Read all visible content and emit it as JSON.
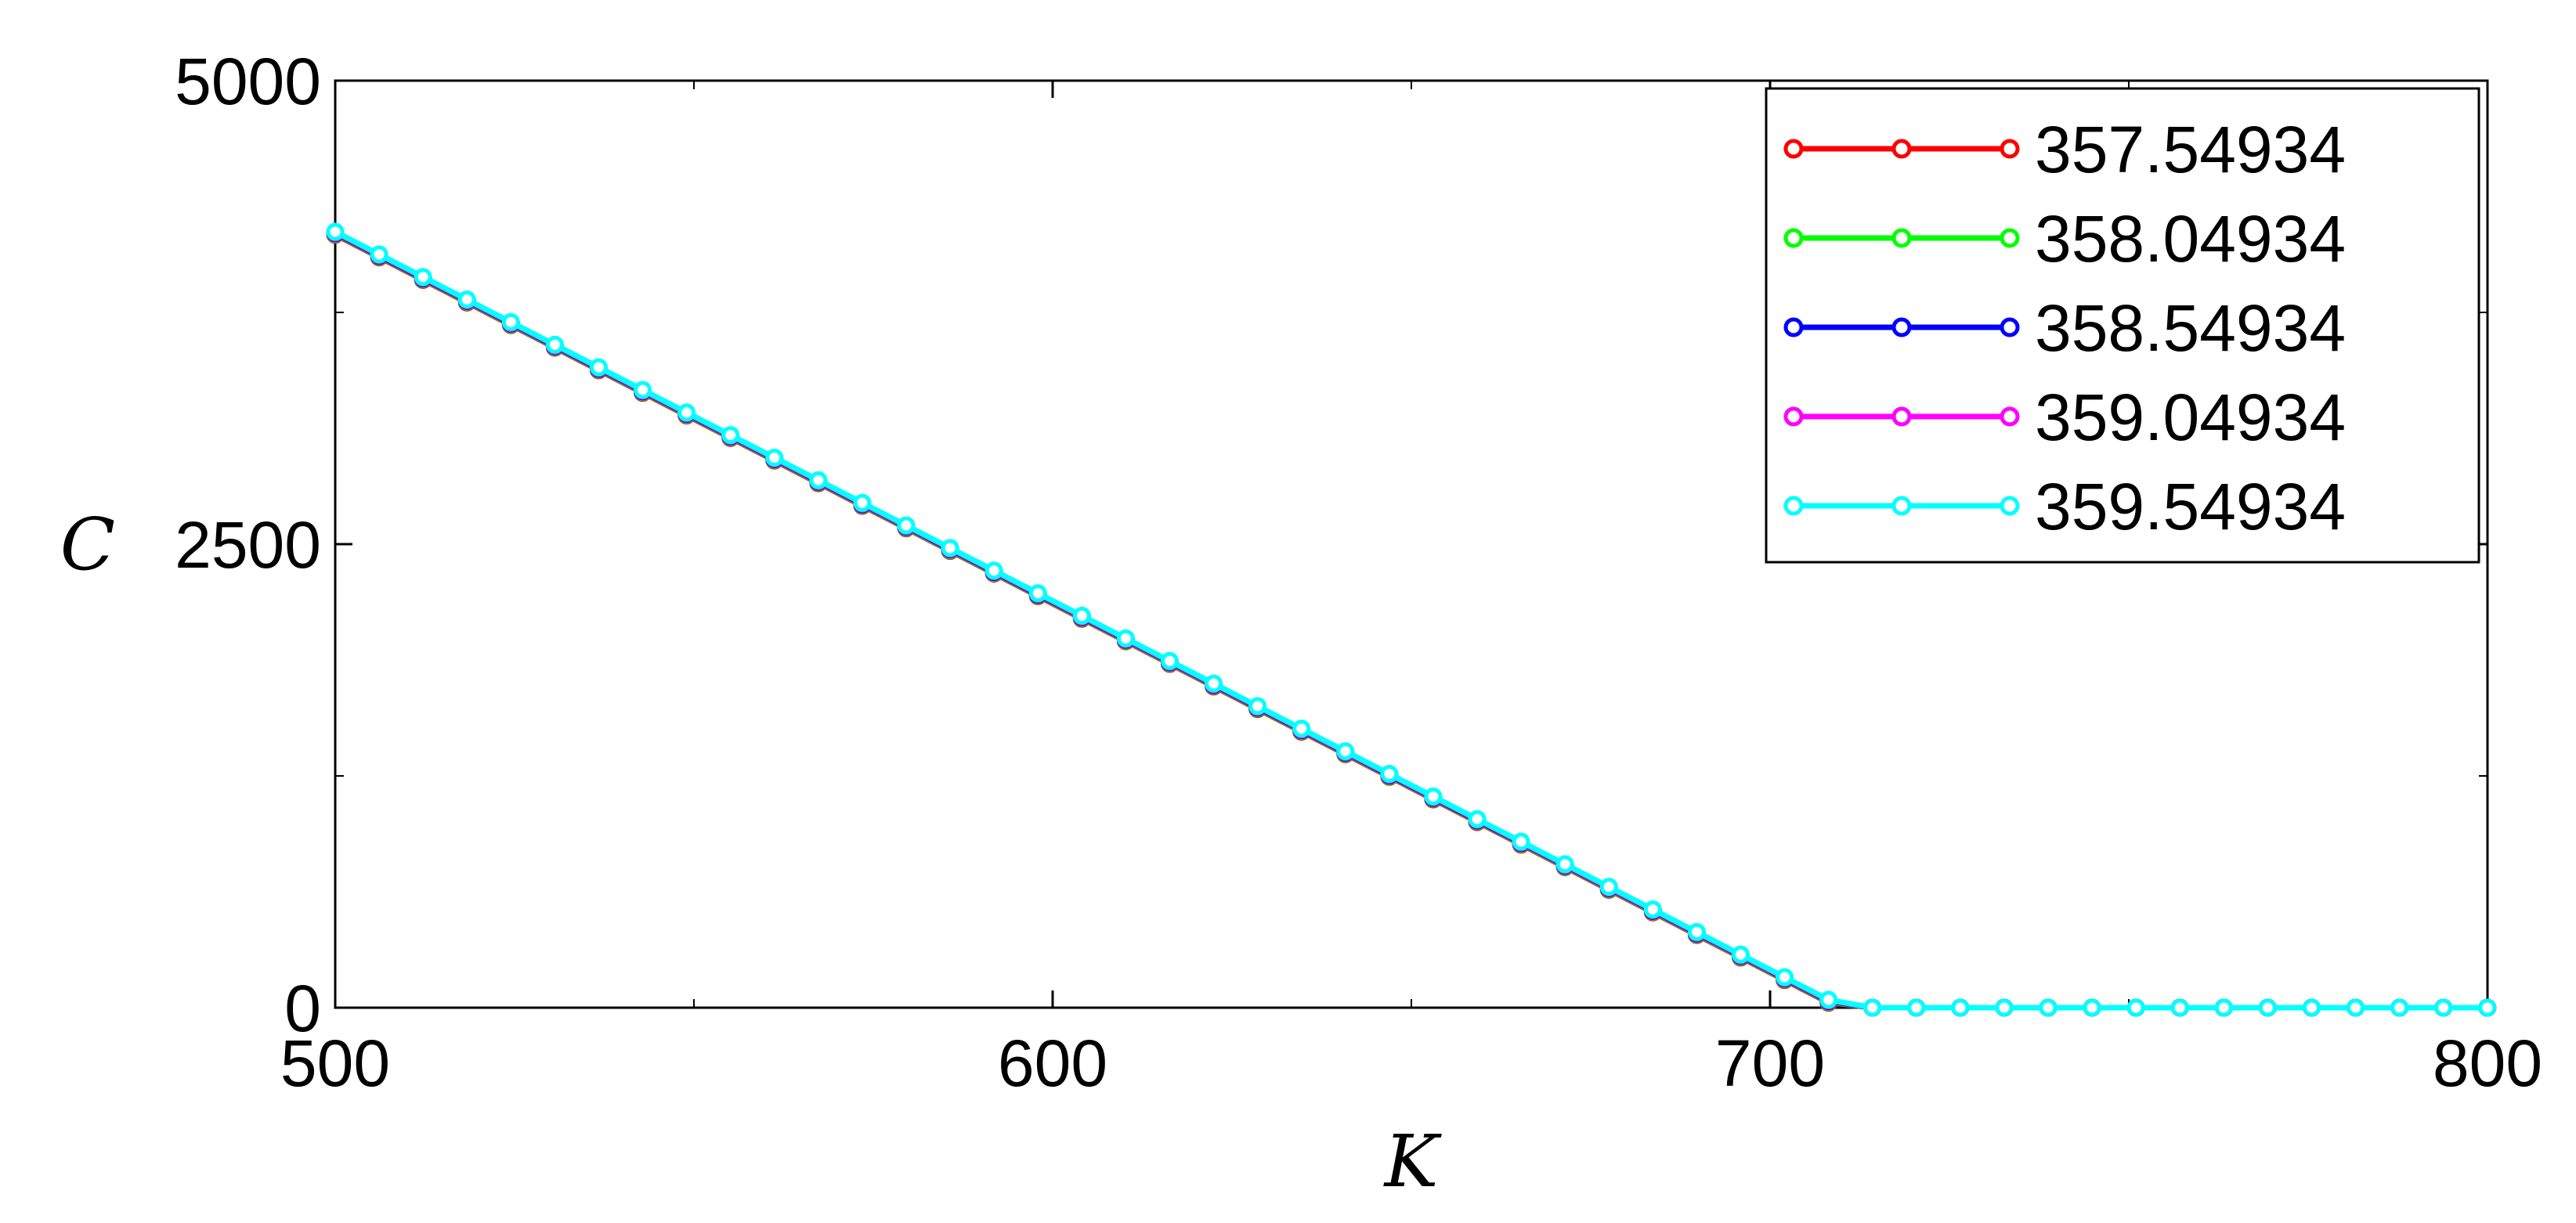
{
  "chart_data": {
    "type": "line",
    "xlabel": "K",
    "ylabel": "C",
    "xlim": [
      500,
      800
    ],
    "ylim": [
      0,
      5000
    ],
    "x_ticks": [
      500,
      600,
      700,
      800
    ],
    "x_tick_labels": [
      "500",
      "600",
      "700",
      "800"
    ],
    "y_ticks": [
      0,
      2500,
      5000
    ],
    "y_tick_labels": [
      "0",
      "2500",
      "5000"
    ],
    "y_minor_ticks": [
      1250,
      3750
    ],
    "x_minor_ticks": [
      550,
      650,
      750
    ],
    "grid": false,
    "legend_position": "top-right",
    "x_points": {
      "start": 500,
      "end": 800,
      "step": 6.122
    },
    "payoff": "max(K - 709.5, 0) * 19.9",
    "series": [
      {
        "name": "357.54934",
        "color": "#ff0000",
        "strike_offset": 0.0
      },
      {
        "name": "358.04934",
        "color": "#00ff00",
        "strike_offset": 0.5
      },
      {
        "name": "358.54934",
        "color": "#0000ff",
        "strike_offset": 1.0
      },
      {
        "name": "359.04934",
        "color": "#ff00ff",
        "strike_offset": 1.5
      },
      {
        "name": "359.54934",
        "color": "#00ffff",
        "strike_offset": 2.0
      }
    ]
  }
}
